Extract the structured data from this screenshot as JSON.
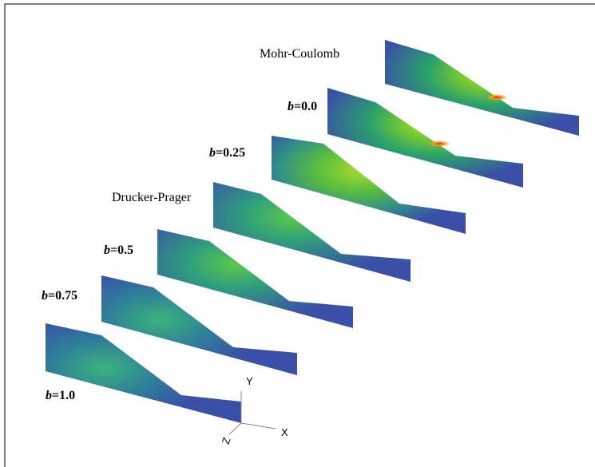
{
  "labels": [
    {
      "text": "Mohr-Coulomb"
    },
    {
      "var": "b",
      "value": "=0.0"
    },
    {
      "var": "b",
      "value": "=0.25"
    },
    {
      "text": "Drucker-Prager"
    },
    {
      "var": "b",
      "value": "=0.5"
    },
    {
      "var": "b",
      "value": "=0.75"
    },
    {
      "var": "b",
      "value": "=1.0"
    }
  ],
  "axes": {
    "y": "Y",
    "x": "X",
    "z": "Z"
  }
}
